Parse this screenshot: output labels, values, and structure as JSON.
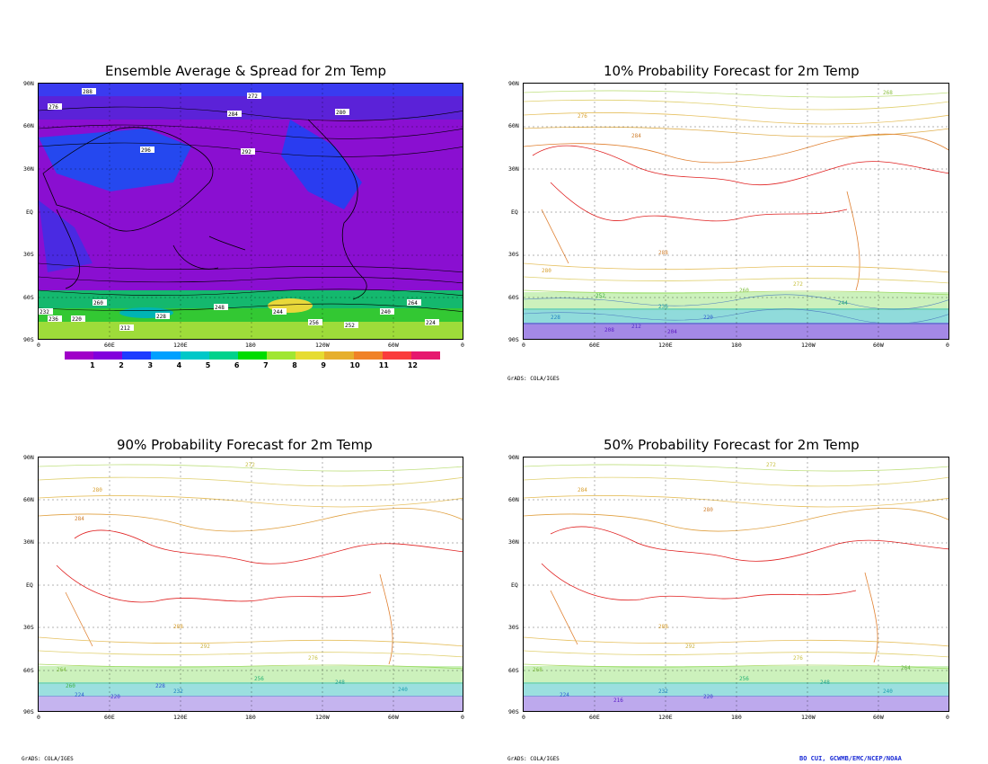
{
  "panels": [
    {
      "id": "ensemble",
      "title": "Ensemble Average & Spread for 2m Temp",
      "lat_labels": [
        "90N",
        "60N",
        "30N",
        "EQ",
        "30S",
        "60S",
        "90S"
      ],
      "lon_labels": [
        "0",
        "60E",
        "120E",
        "180",
        "120W",
        "60W",
        "0"
      ],
      "contour_labels": [
        "288",
        "272",
        "280",
        "276",
        "284",
        "292",
        "296",
        "236",
        "244",
        "260",
        "248",
        "256",
        "232",
        "220",
        "224",
        "240",
        "212",
        "228",
        "252",
        "264"
      ]
    },
    {
      "id": "p10",
      "title": "10% Probability Forecast for 2m Temp",
      "lat_labels": [
        "90N",
        "60N",
        "30N",
        "EQ",
        "30S",
        "60S",
        "90S"
      ],
      "lon_labels": [
        "0",
        "60E",
        "120E",
        "180",
        "120W",
        "60W",
        "0"
      ],
      "contour_labels": [
        "268",
        "276",
        "284",
        "280",
        "288",
        "272",
        "252",
        "260",
        "244",
        "236",
        "228",
        "220",
        "212",
        "208",
        "204"
      ]
    },
    {
      "id": "p90",
      "title": "90% Probability Forecast for 2m Temp",
      "lat_labels": [
        "90N",
        "60N",
        "30N",
        "EQ",
        "30S",
        "60S",
        "90S"
      ],
      "lon_labels": [
        "0",
        "60E",
        "120E",
        "180",
        "120W",
        "60W",
        "0"
      ],
      "contour_labels": [
        "272",
        "280",
        "284",
        "288",
        "292",
        "276",
        "264",
        "260",
        "256",
        "248",
        "240",
        "232",
        "224",
        "220",
        "228"
      ]
    },
    {
      "id": "p50",
      "title": "50% Probability Forecast for 2m Temp",
      "lat_labels": [
        "90N",
        "60N",
        "30N",
        "EQ",
        "30S",
        "60S",
        "90S"
      ],
      "lon_labels": [
        "0",
        "60E",
        "120E",
        "180",
        "120W",
        "60W",
        "0"
      ],
      "contour_labels": [
        "272",
        "284",
        "280",
        "288",
        "292",
        "276",
        "268",
        "264",
        "256",
        "248",
        "240",
        "232",
        "224",
        "216",
        "220"
      ]
    }
  ],
  "colorbar": {
    "labels": [
      "1",
      "2",
      "3",
      "4",
      "5",
      "6",
      "7",
      "8",
      "9",
      "10",
      "11",
      "12"
    ],
    "colors": [
      "#a000c8",
      "#8200dc",
      "#1e3cff",
      "#00a0ff",
      "#00c8c8",
      "#00d28c",
      "#00dc00",
      "#a0e632",
      "#e6dc32",
      "#e6af2d",
      "#f08228",
      "#fa3c3c",
      "#e6186e"
    ]
  },
  "notes": {
    "grads_note_1": "GrADS: COLA/IGES",
    "grads_note_2": "GrADS: COLA/IGES",
    "grads_note_3": "GrADS: COLA/IGES",
    "credit": "BO CUI, GCWMB/EMC/NCEP/NOAA"
  }
}
